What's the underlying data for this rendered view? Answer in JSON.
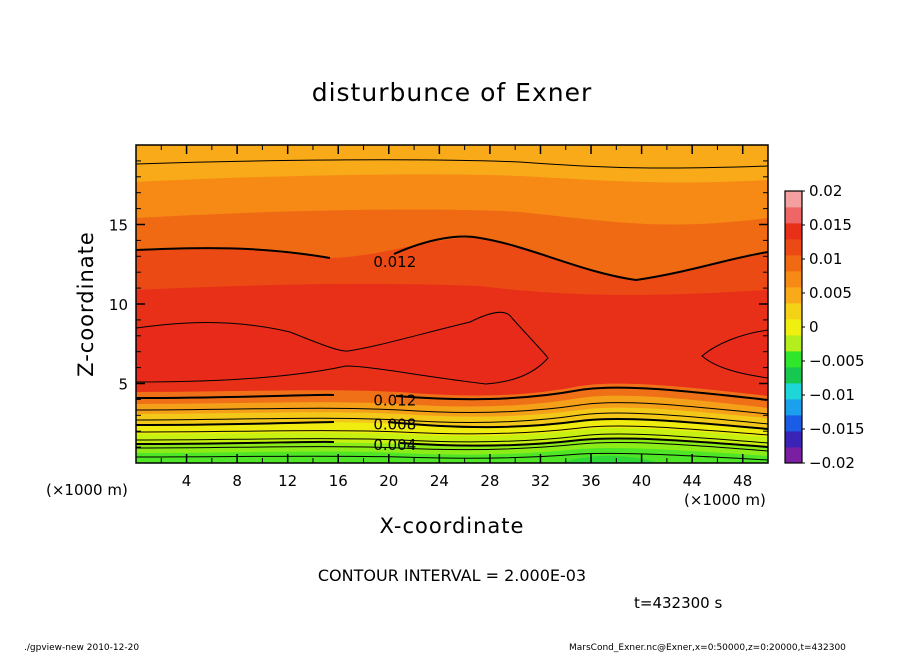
{
  "chart_data": {
    "type": "contour",
    "title": "disturbunce of Exner",
    "xlabel": "X-coordinate",
    "ylabel": "Z-coordinate",
    "x_unit_label": "(×1000 m)",
    "z_unit_label": "(×1000 m)",
    "x_ticks": [
      "4",
      "8",
      "12",
      "16",
      "20",
      "24",
      "28",
      "32",
      "36",
      "40",
      "44",
      "48"
    ],
    "y_ticks": [
      "5",
      "10",
      "15"
    ],
    "xlim": [
      0,
      50
    ],
    "ylim": [
      0,
      20
    ],
    "contour_labels": [
      {
        "text": "0.012",
        "x": 20,
        "z": 12.7
      },
      {
        "text": "0.012",
        "x": 20,
        "z": 4.0
      },
      {
        "text": "0.008",
        "x": 20,
        "z": 2.5
      },
      {
        "text": "0.004",
        "x": 20,
        "z": 1.2
      }
    ],
    "colorbar": {
      "ticks": [
        "0.02",
        "0.015",
        "0.01",
        "0.005",
        "0",
        "−0.005",
        "−0.01",
        "−0.015",
        "−0.02"
      ],
      "colors": [
        "#7a1fa2",
        "#3a24b8",
        "#1a5ce6",
        "#1aa0ec",
        "#1ed6d8",
        "#16c850",
        "#2ee62a",
        "#b4ee1c",
        "#f0f010",
        "#f4d218",
        "#f8aa18",
        "#f68a14",
        "#f06a14",
        "#ec4a14",
        "#e83018",
        "#ee6666",
        "#f4a0a0"
      ]
    },
    "contour_interval": "CONTOUR INTERVAL = 2.000E-03",
    "time": "t=432300 s"
  },
  "footer": {
    "left": "./gpview-new   2010-12-20",
    "right": "MarsCond_Exner.nc@Exner,x=0:50000,z=0:20000,t=432300"
  }
}
